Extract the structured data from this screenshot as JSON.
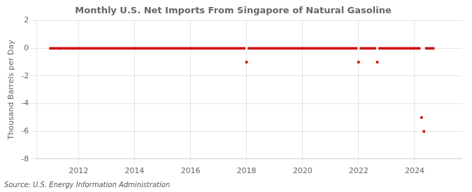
{
  "chart_data": {
    "type": "scatter",
    "title": "Monthly U.S. Net Imports From Singapore of Natural Gasoline",
    "ylabel": "Thousand Barrels per Day",
    "source": "Source: U.S. Energy Information Administration",
    "color": "#cc0000",
    "marker": "square",
    "grid": true,
    "xlim": [
      2010.5,
      2025.7
    ],
    "xticks": [
      2012,
      2014,
      2016,
      2018,
      2020,
      2022,
      2024
    ],
    "ylim": [
      -8,
      2
    ],
    "yticks": [
      -8,
      -6,
      -4,
      -2,
      0,
      2
    ],
    "x": [
      2011.0,
      2011.083,
      2011.167,
      2011.25,
      2011.333,
      2011.417,
      2011.5,
      2011.583,
      2011.667,
      2011.75,
      2011.833,
      2011.917,
      2012.0,
      2012.083,
      2012.167,
      2012.25,
      2012.333,
      2012.417,
      2012.5,
      2012.583,
      2012.667,
      2012.75,
      2012.833,
      2012.917,
      2013.0,
      2013.083,
      2013.167,
      2013.25,
      2013.333,
      2013.417,
      2013.5,
      2013.583,
      2013.667,
      2013.75,
      2013.833,
      2013.917,
      2014.0,
      2014.083,
      2014.167,
      2014.25,
      2014.333,
      2014.417,
      2014.5,
      2014.583,
      2014.667,
      2014.75,
      2014.833,
      2014.917,
      2015.0,
      2015.083,
      2015.167,
      2015.25,
      2015.333,
      2015.417,
      2015.5,
      2015.583,
      2015.667,
      2015.75,
      2015.833,
      2015.917,
      2016.0,
      2016.083,
      2016.167,
      2016.25,
      2016.333,
      2016.417,
      2016.5,
      2016.583,
      2016.667,
      2016.75,
      2016.833,
      2016.917,
      2017.0,
      2017.083,
      2017.167,
      2017.25,
      2017.333,
      2017.417,
      2017.5,
      2017.583,
      2017.667,
      2017.75,
      2017.833,
      2017.917,
      2018.0,
      2018.083,
      2018.167,
      2018.25,
      2018.333,
      2018.417,
      2018.5,
      2018.583,
      2018.667,
      2018.75,
      2018.833,
      2018.917,
      2019.0,
      2019.083,
      2019.167,
      2019.25,
      2019.333,
      2019.417,
      2019.5,
      2019.583,
      2019.667,
      2019.75,
      2019.833,
      2019.917,
      2020.0,
      2020.083,
      2020.167,
      2020.25,
      2020.333,
      2020.417,
      2020.5,
      2020.583,
      2020.667,
      2020.75,
      2020.833,
      2020.917,
      2021.0,
      2021.083,
      2021.167,
      2021.25,
      2021.333,
      2021.417,
      2021.5,
      2021.583,
      2021.667,
      2021.75,
      2021.833,
      2021.917,
      2022.0,
      2022.083,
      2022.167,
      2022.25,
      2022.333,
      2022.417,
      2022.5,
      2022.583,
      2022.667,
      2022.75,
      2022.833,
      2022.917,
      2023.0,
      2023.083,
      2023.167,
      2023.25,
      2023.333,
      2023.417,
      2023.5,
      2023.583,
      2023.667,
      2023.75,
      2023.833,
      2023.917,
      2024.0,
      2024.083,
      2024.167,
      2024.25,
      2024.333,
      2024.417,
      2024.5,
      2024.583,
      2024.667
    ],
    "values": [
      0,
      0,
      0,
      0,
      0,
      0,
      0,
      0,
      0,
      0,
      0,
      0,
      0,
      0,
      0,
      0,
      0,
      0,
      0,
      0,
      0,
      0,
      0,
      0,
      0,
      0,
      0,
      0,
      0,
      0,
      0,
      0,
      0,
      0,
      0,
      0,
      0,
      0,
      0,
      0,
      0,
      0,
      0,
      0,
      0,
      0,
      0,
      0,
      0,
      0,
      0,
      0,
      0,
      0,
      0,
      0,
      0,
      0,
      0,
      0,
      0,
      0,
      0,
      0,
      0,
      0,
      0,
      0,
      0,
      0,
      0,
      0,
      0,
      0,
      0,
      0,
      0,
      0,
      0,
      0,
      0,
      0,
      0,
      0,
      -1,
      0,
      0,
      0,
      0,
      0,
      0,
      0,
      0,
      0,
      0,
      0,
      0,
      0,
      0,
      0,
      0,
      0,
      0,
      0,
      0,
      0,
      0,
      0,
      0,
      0,
      0,
      0,
      0,
      0,
      0,
      0,
      0,
      0,
      0,
      0,
      0,
      0,
      0,
      0,
      0,
      0,
      0,
      0,
      0,
      0,
      0,
      0,
      -1,
      0,
      0,
      0,
      0,
      0,
      0,
      0,
      -1,
      0,
      0,
      0,
      0,
      0,
      0,
      0,
      0,
      0,
      0,
      0,
      0,
      0,
      0,
      0,
      0,
      0,
      0,
      -5,
      -6,
      0,
      0,
      0,
      0
    ]
  }
}
